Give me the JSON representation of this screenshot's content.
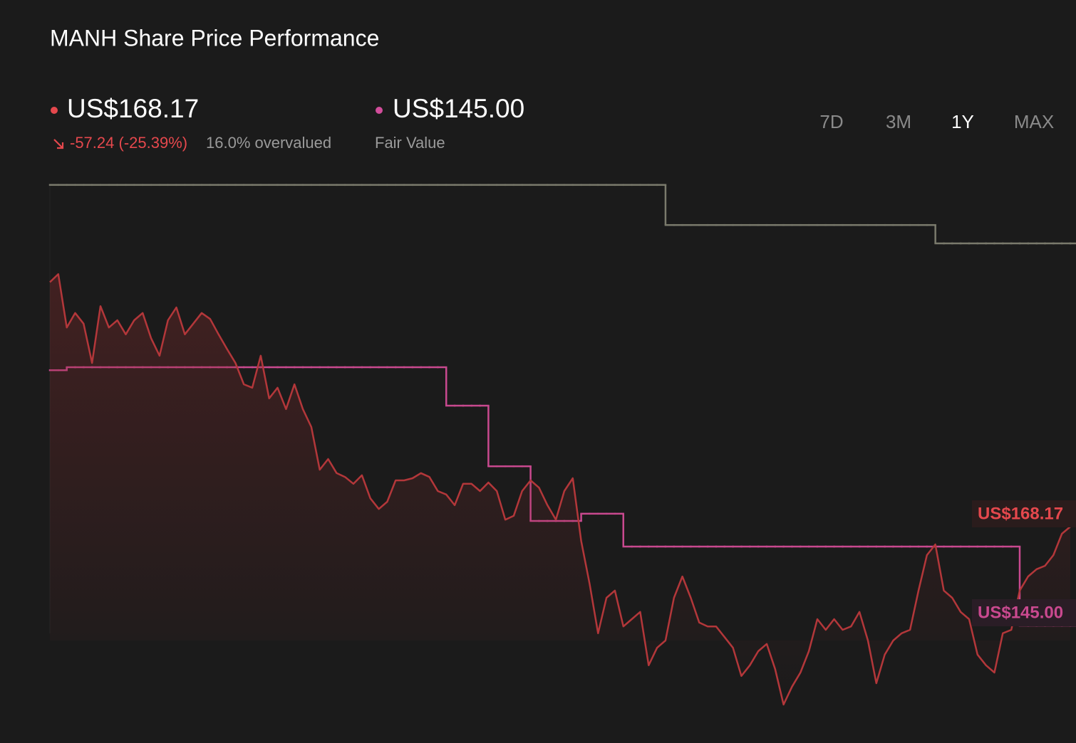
{
  "header": {
    "price": "US$168.17",
    "change": "-57.24 (-25.39%)",
    "valuation": "16.0% overvalued",
    "fair_value": "US$145.00",
    "fair_value_caption": "Fair Value"
  },
  "tabs": {
    "items": [
      "7D",
      "3M",
      "1Y",
      "MAX"
    ],
    "active": 2
  },
  "chart_data": {
    "type": "line",
    "title": "MANH Share Price Performance",
    "ylim": [
      120,
      260
    ],
    "grid": false,
    "series": [
      {
        "color": "#7a7a6c",
        "step": true,
        "values": [
          248.2,
          248.2,
          248.2,
          248.2,
          248.2,
          248.2,
          248.2,
          248.2,
          248.2,
          248.2,
          248.2,
          248.2,
          248.2,
          248.2,
          248.2,
          248.2,
          248.2,
          248.2,
          248.2,
          248.2,
          248.2,
          248.2,
          248.2,
          248.2,
          248.2,
          248.2,
          248.2,
          248.2,
          248.2,
          248.2,
          248.2,
          248.2,
          248.2,
          248.2,
          248.2,
          248.2,
          248.2,
          248.2,
          248.2,
          248.2,
          248.2,
          248.2,
          248.2,
          248.2,
          248.2,
          248.2,
          248.2,
          248.2,
          248.2,
          248.2,
          248.2,
          248.2,
          248.2,
          248.2,
          248.2,
          248.2,
          248.2,
          248.2,
          248.2,
          248.2,
          248.2,
          248.2,
          248.2,
          248.2,
          248.2,
          248.2,
          248.2,
          248.2,
          248.2,
          248.2,
          248.2,
          248.2,
          248.2,
          238.8,
          238.8,
          238.8,
          238.8,
          238.8,
          238.8,
          238.8,
          238.8,
          238.8,
          238.8,
          238.8,
          238.8,
          238.8,
          238.8,
          238.8,
          238.8,
          238.8,
          238.8,
          238.8,
          238.8,
          238.8,
          238.8,
          238.8,
          238.8,
          238.8,
          238.8,
          238.8,
          238.8,
          238.8,
          238.8,
          238.8,
          238.8,
          234.5,
          234.5,
          234.5,
          234.5,
          234.5,
          234.5,
          234.5,
          234.5,
          234.5,
          234.5,
          234.5,
          234.5,
          234.5,
          234.5,
          234.5,
          234.5,
          234.5
        ]
      },
      {
        "color": "#c9498f",
        "step": true,
        "end_label": "US$145.00",
        "label_bg": "#2a1d26",
        "values": [
          204.8,
          204.8,
          205.5,
          205.5,
          205.5,
          205.5,
          205.5,
          205.5,
          205.5,
          205.5,
          205.5,
          205.5,
          205.5,
          205.5,
          205.5,
          205.5,
          205.5,
          205.5,
          205.5,
          205.5,
          205.5,
          205.5,
          205.5,
          205.5,
          205.5,
          205.5,
          205.5,
          205.5,
          205.5,
          205.5,
          205.5,
          205.5,
          205.5,
          205.5,
          205.5,
          205.5,
          205.5,
          205.5,
          205.5,
          205.5,
          205.5,
          205.5,
          205.5,
          205.5,
          205.5,
          205.5,
          205.5,
          196.5,
          196.5,
          196.5,
          196.5,
          196.5,
          182.3,
          182.3,
          182.3,
          182.3,
          182.3,
          169.5,
          169.5,
          169.5,
          169.5,
          169.5,
          169.5,
          171.2,
          171.2,
          171.2,
          171.2,
          171.2,
          163.5,
          163.5,
          163.5,
          163.5,
          163.5,
          163.5,
          163.5,
          163.5,
          163.5,
          163.5,
          163.5,
          163.5,
          163.5,
          163.5,
          163.5,
          163.5,
          163.5,
          163.5,
          163.5,
          163.5,
          163.5,
          163.5,
          163.5,
          163.5,
          163.5,
          163.5,
          163.5,
          163.5,
          163.5,
          163.5,
          163.5,
          163.5,
          163.5,
          163.5,
          163.5,
          163.5,
          163.5,
          163.5,
          163.5,
          163.5,
          163.5,
          163.5,
          163.5,
          163.5,
          163.5,
          163.5,
          163.5,
          145.0,
          145.0,
          145.0,
          145.0,
          145.0,
          145.0,
          145.0
        ]
      },
      {
        "color": "#b3373a",
        "step": false,
        "area": true,
        "end_label": "US$168.17",
        "label_bg": "#2a1c1c",
        "label_color": "#e5484d",
        "values": [
          225.41,
          227.3,
          214.8,
          218.2,
          215.7,
          206.5,
          219.8,
          214.8,
          216.5,
          213.2,
          216.5,
          218.2,
          212.3,
          208.2,
          216.5,
          219.5,
          213.2,
          215.7,
          218.2,
          216.8,
          213.2,
          209.8,
          206.5,
          201.5,
          200.7,
          208.2,
          198.2,
          200.7,
          195.7,
          201.5,
          195.7,
          191.5,
          181.5,
          184.0,
          180.7,
          179.8,
          178.2,
          180.2,
          174.8,
          172.3,
          174.0,
          179.0,
          179.0,
          179.5,
          180.7,
          179.8,
          176.5,
          175.7,
          173.2,
          178.2,
          178.2,
          176.5,
          178.5,
          176.5,
          169.8,
          170.7,
          176.5,
          179.0,
          177.3,
          173.2,
          169.8,
          176.5,
          179.5,
          164.8,
          154.8,
          143.2,
          151.5,
          153.2,
          144.8,
          146.5,
          148.2,
          135.7,
          139.8,
          141.5,
          151.5,
          156.5,
          151.5,
          145.7,
          144.8,
          144.8,
          142.3,
          139.8,
          133.2,
          135.7,
          139.0,
          140.7,
          134.8,
          126.5,
          130.7,
          134.0,
          139.0,
          146.5,
          144.0,
          146.5,
          144.0,
          144.8,
          148.2,
          141.5,
          131.5,
          138.2,
          141.5,
          143.2,
          144.0,
          153.2,
          161.5,
          164.0,
          153.2,
          151.5,
          148.2,
          146.5,
          138.2,
          135.7,
          134.0,
          143.2,
          144.0,
          153.2,
          156.5,
          158.2,
          159.0,
          161.5,
          166.5,
          168.17
        ]
      }
    ]
  }
}
